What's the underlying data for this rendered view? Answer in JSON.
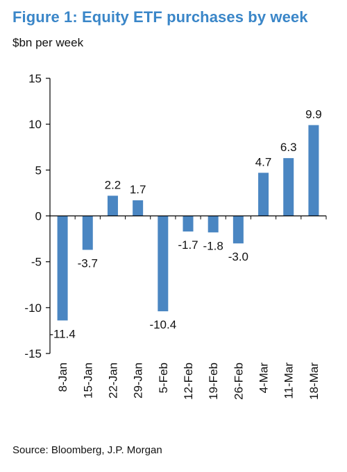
{
  "title": "Figure 1: Equity ETF purchases by week",
  "subtitle": "$bn per week",
  "source": "Source: Bloomberg, J.P. Morgan",
  "colors": {
    "title": "#3a86c8",
    "bar": "#4a86c2",
    "axis": "#000000"
  },
  "chart_data": {
    "type": "bar",
    "categories": [
      "8-Jan",
      "15-Jan",
      "22-Jan",
      "29-Jan",
      "5-Feb",
      "12-Feb",
      "19-Feb",
      "26-Feb",
      "4-Mar",
      "11-Mar",
      "18-Mar"
    ],
    "values": [
      -11.4,
      -3.7,
      2.2,
      1.7,
      -10.4,
      -1.7,
      -1.8,
      -3.0,
      4.7,
      6.3,
      9.9
    ],
    "value_labels": [
      "-11.4",
      "-3.7",
      "2.2",
      "1.7",
      "-10.4",
      "-1.7",
      "-1.8",
      "-3.0",
      "4.7",
      "6.3",
      "9.9"
    ],
    "title": "Figure 1: Equity ETF purchases by week",
    "xlabel": "",
    "ylabel": "$bn per week",
    "ylim": [
      -15,
      15
    ],
    "yticks": [
      15,
      10,
      5,
      0,
      -5,
      -10,
      -15
    ],
    "ytick_labels": [
      "15",
      "10",
      "5",
      "0",
      "-5",
      "-10",
      "-15"
    ],
    "grid": false,
    "legend": "none"
  }
}
